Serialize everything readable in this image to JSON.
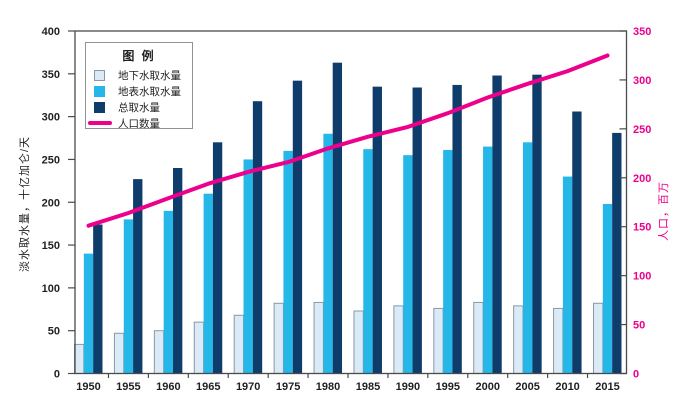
{
  "chart_data": {
    "type": "bar",
    "subtype": "grouped-bars-with-line-overlay",
    "categories": [
      "1950",
      "1955",
      "1960",
      "1965",
      "1970",
      "1975",
      "1980",
      "1985",
      "1990",
      "1995",
      "2000",
      "2005",
      "2010",
      "2015"
    ],
    "series": [
      {
        "name": "地下水取水量",
        "type": "bar",
        "axis": "left",
        "color": "#daeaf7",
        "border_color": "#8a98a6",
        "values": [
          34,
          47,
          50,
          60,
          68,
          82,
          83,
          73,
          79,
          76,
          83,
          79,
          76,
          82
        ]
      },
      {
        "name": "地表水取水量",
        "type": "bar",
        "axis": "left",
        "color": "#25b7e8",
        "values": [
          140,
          180,
          190,
          210,
          250,
          260,
          280,
          262,
          255,
          261,
          265,
          270,
          230,
          198
        ]
      },
      {
        "name": "总取水量",
        "type": "bar",
        "axis": "left",
        "color": "#0e3c6b",
        "values": [
          174,
          227,
          240,
          270,
          318,
          342,
          363,
          335,
          334,
          337,
          348,
          349,
          306,
          281
        ]
      },
      {
        "name": "人口数量",
        "type": "line",
        "axis": "right",
        "color": "#ec008c",
        "values": [
          151,
          164,
          179,
          194,
          206,
          216,
          230,
          242,
          252,
          266,
          282,
          296,
          309,
          325
        ]
      }
    ],
    "left_axis": {
      "label": "淡水取水量，十亿加仑/天",
      "min": 0,
      "max": 400,
      "step": 50,
      "tick_color": "#231f20"
    },
    "right_axis": {
      "label": "人口，百万",
      "min": 0,
      "max": 350,
      "step": 50,
      "tick_color": "#ec008c"
    },
    "x_axis": {
      "tick_color": "#231f20"
    },
    "legend": {
      "title": "图 例"
    },
    "grid": "off",
    "frame_color": "#4a4a4c",
    "background": "#ffffff"
  }
}
